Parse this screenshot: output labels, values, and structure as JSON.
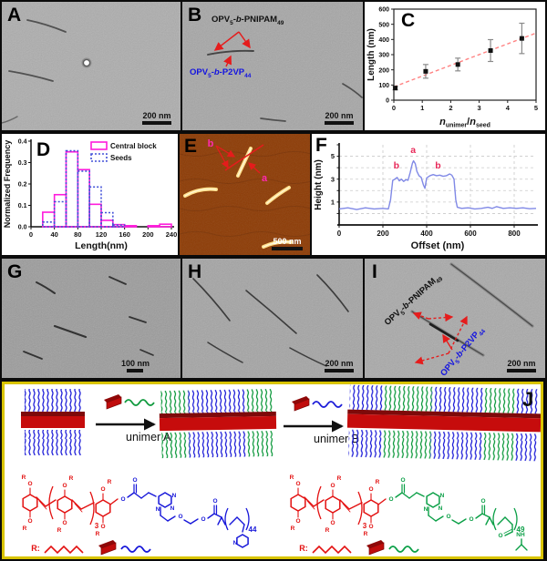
{
  "panels": {
    "A": {
      "label": "A",
      "scale_bar": "200 nm"
    },
    "B": {
      "label": "B",
      "scale_bar": "200 nm"
    },
    "C": {
      "label": "C"
    },
    "D": {
      "label": "D"
    },
    "E": {
      "label": "E",
      "ann_a": "a",
      "ann_b": "b",
      "scale_bar": "500 nm"
    },
    "F": {
      "label": "F"
    },
    "G": {
      "label": "G",
      "scale_bar": "100 nm"
    },
    "H": {
      "label": "H",
      "scale_bar": "200 nm"
    },
    "I": {
      "label": "I",
      "scale_bar": "200 nm"
    },
    "J": {
      "label": "J",
      "arrow_a_label": "unimer A",
      "arrow_b_label": "unimer B"
    }
  },
  "molecule_labels": {
    "pnipam": {
      "base": "OPV",
      "sub1": "5",
      "dash1": "-",
      "ital": "b",
      "dash2": "-PNIPAM",
      "sub2": "49"
    },
    "p2vp": {
      "base": "OPV",
      "sub1": "5",
      "dash1": "-",
      "ital": "b",
      "dash2": "-P2VP",
      "sub2": "44"
    }
  },
  "chem": {
    "o": "O",
    "n": "N",
    "nh": "NH",
    "r": "R",
    "r_colon": "R:",
    "opv_repeat": "3",
    "p2vp_repeat": "44",
    "pnipam_repeat": "49",
    "red": "#e31010",
    "blue": "#1616d9",
    "green": "#0a9f46"
  },
  "chart_data": [
    {
      "id": "C",
      "type": "scatter",
      "ylabel": "Length (nm)",
      "xlabel_parts": {
        "n1": "n",
        "sub1": "unimer",
        "slash": "/",
        "n2": "n",
        "sub2": "seed"
      },
      "xlim": [
        0,
        5
      ],
      "ylim": [
        0,
        600
      ],
      "xticks": [
        0,
        1,
        2,
        3,
        4,
        5
      ],
      "yticks": [
        0,
        100,
        200,
        300,
        400,
        500,
        600
      ],
      "points": [
        {
          "x": 0.05,
          "y": 80,
          "err": 12
        },
        {
          "x": 1.12,
          "y": 190,
          "err": 45
        },
        {
          "x": 2.25,
          "y": 235,
          "err": 42
        },
        {
          "x": 3.4,
          "y": 327,
          "err": 72
        },
        {
          "x": 4.5,
          "y": 407,
          "err": 100
        }
      ],
      "fit": {
        "x0": 0,
        "y0": 88,
        "x1": 5,
        "y1": 442
      },
      "marker_color": "#111111",
      "fit_color": "#ff8282",
      "error_color": "#8a8a8a",
      "legend_position": "none",
      "grid": false
    },
    {
      "id": "D",
      "type": "bar",
      "xlabel": "Length(nm)",
      "ylabel": "Normalized Frequency",
      "xlim": [
        0,
        240
      ],
      "ylim": [
        0,
        0.4
      ],
      "bin_width": 20,
      "xticks": [
        0,
        40,
        80,
        120,
        160,
        200,
        240
      ],
      "ytick_labels": [
        "0.0",
        "0.1",
        "0.2",
        "0.3",
        "0.4"
      ],
      "yticks": [
        0,
        0.1,
        0.2,
        0.3,
        0.4
      ],
      "series": [
        {
          "name": "Central block",
          "color": "#ff1cdc",
          "line": "solid",
          "bins": [
            {
              "start": 20,
              "v": 0.068
            },
            {
              "start": 40,
              "v": 0.15
            },
            {
              "start": 60,
              "v": 0.35
            },
            {
              "start": 80,
              "v": 0.267
            },
            {
              "start": 100,
              "v": 0.105
            },
            {
              "start": 120,
              "v": 0.03
            },
            {
              "start": 140,
              "v": 0.01
            },
            {
              "start": 160,
              "v": 0.005
            },
            {
              "start": 200,
              "v": 0.005
            },
            {
              "start": 220,
              "v": 0.012
            }
          ]
        },
        {
          "name": "Seeds",
          "color": "#4250d8",
          "line": "dotted",
          "bins": [
            {
              "start": 20,
              "v": 0.022
            },
            {
              "start": 40,
              "v": 0.117
            },
            {
              "start": 60,
              "v": 0.355
            },
            {
              "start": 80,
              "v": 0.26
            },
            {
              "start": 100,
              "v": 0.186
            },
            {
              "start": 120,
              "v": 0.066
            },
            {
              "start": 140,
              "v": 0.008
            }
          ]
        }
      ],
      "legend_position": "top-right",
      "grid": false
    },
    {
      "id": "F",
      "type": "line",
      "xlabel": "Offset (nm)",
      "ylabel": "Height (nm)",
      "xlim": [
        0,
        900
      ],
      "ylim": [
        -1,
        6
      ],
      "xticks": [
        0,
        200,
        400,
        600,
        800
      ],
      "yticks": [
        1,
        3,
        5
      ],
      "grid": true,
      "line_color": "#8089e6",
      "ann_color": "#e82a5a",
      "profile": [
        [
          0,
          0.4
        ],
        [
          40,
          0.5
        ],
        [
          80,
          0.35
        ],
        [
          120,
          0.5
        ],
        [
          160,
          0.4
        ],
        [
          200,
          0.45
        ],
        [
          225,
          0.4
        ],
        [
          235,
          1.2
        ],
        [
          245,
          2.9
        ],
        [
          255,
          3.0
        ],
        [
          265,
          3.15
        ],
        [
          275,
          2.85
        ],
        [
          285,
          3.0
        ],
        [
          295,
          2.8
        ],
        [
          305,
          2.95
        ],
        [
          315,
          2.9
        ],
        [
          325,
          3.6
        ],
        [
          335,
          4.4
        ],
        [
          340,
          4.6
        ],
        [
          348,
          4.35
        ],
        [
          355,
          3.7
        ],
        [
          365,
          3.3
        ],
        [
          375,
          3.15
        ],
        [
          385,
          2.5
        ],
        [
          392,
          2.2
        ],
        [
          400,
          3.1
        ],
        [
          415,
          3.3
        ],
        [
          430,
          3.4
        ],
        [
          445,
          3.3
        ],
        [
          460,
          3.35
        ],
        [
          475,
          3.25
        ],
        [
          490,
          3.3
        ],
        [
          505,
          3.45
        ],
        [
          515,
          3.35
        ],
        [
          525,
          3.0
        ],
        [
          533,
          1.2
        ],
        [
          540,
          0.55
        ],
        [
          560,
          0.45
        ],
        [
          590,
          0.5
        ],
        [
          620,
          0.4
        ],
        [
          650,
          0.45
        ],
        [
          680,
          0.55
        ],
        [
          700,
          0.45
        ],
        [
          720,
          0.6
        ],
        [
          750,
          0.45
        ],
        [
          780,
          0.5
        ],
        [
          810,
          0.45
        ],
        [
          840,
          0.5
        ],
        [
          870,
          0.42
        ],
        [
          900,
          0.45
        ]
      ],
      "annotations": [
        {
          "text": "b",
          "x": 262,
          "y": 3.95
        },
        {
          "text": "a",
          "x": 338,
          "y": 5.3
        },
        {
          "text": "b",
          "x": 452,
          "y": 3.95
        }
      ]
    }
  ]
}
